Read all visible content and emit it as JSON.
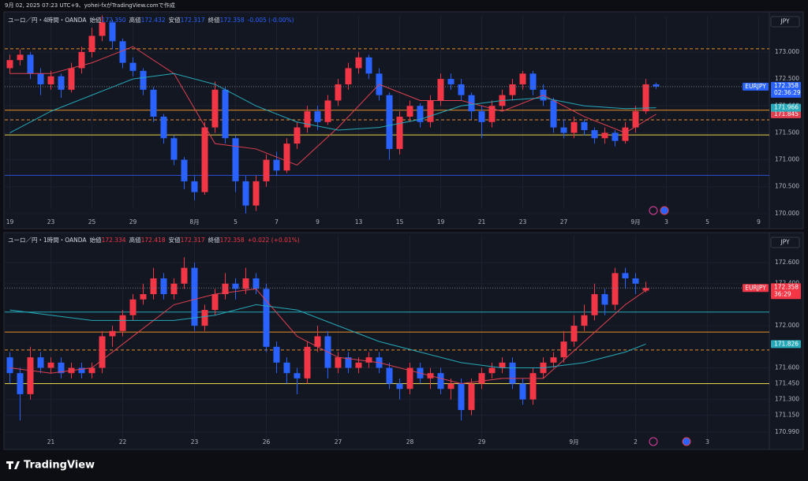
{
  "caption": "9月 02, 2025 07:23 UTC+9、yohei-fxがTradingView.comで作成",
  "footer": "TradingView",
  "chart_data": [
    {
      "type": "candlestick",
      "header": {
        "symbol": "ユーロ／円・4時間・OANDA",
        "fields": [
          {
            "label": "始値",
            "value": "172.350"
          },
          {
            "label": "高値",
            "value": "172.432"
          },
          {
            "label": "安値",
            "value": "172.317"
          },
          {
            "label": "終値",
            "value": "172.358"
          }
        ],
        "change": "-0.005 (-0.00%)",
        "color": "#2962ff"
      },
      "currency": "JPY",
      "symbol": "EURJPY",
      "countdown": "02:36:29",
      "tag_color": "#2962ff",
      "up_color": "#f23645",
      "down_color": "#2962ff",
      "grid": true,
      "ylim": [
        169.94,
        173.673
      ],
      "yticks": [
        {
          "value": 173,
          "label": "173.000"
        },
        {
          "value": 172.5,
          "label": "172.500"
        },
        {
          "value": 172,
          "label": "172.000"
        },
        {
          "value": 171.5,
          "label": "171.500"
        },
        {
          "value": 171,
          "label": "171.000"
        },
        {
          "value": 170.5,
          "label": "170.500"
        },
        {
          "value": 170,
          "label": "170.000"
        }
      ],
      "categories": [
        "19",
        null,
        null,
        null,
        "23",
        null,
        null,
        null,
        "25",
        null,
        null,
        null,
        "29",
        null,
        null,
        null,
        null,
        null,
        "8月",
        null,
        null,
        null,
        "5",
        null,
        null,
        null,
        "7",
        null,
        null,
        null,
        "9",
        null,
        null,
        null,
        "13",
        null,
        null,
        null,
        "15",
        null,
        null,
        null,
        "19",
        null,
        null,
        null,
        "21",
        null,
        null,
        null,
        "23",
        null,
        null,
        null,
        "27",
        null,
        null,
        null,
        null,
        null,
        null,
        "9月",
        null,
        null,
        "3",
        null,
        null,
        null,
        "5",
        null,
        null,
        null,
        null,
        "9"
      ],
      "open": [
        172.7,
        172.85,
        172.95,
        172.6,
        172.4,
        172.55,
        172.3,
        172.7,
        173.0,
        173.3,
        173.55,
        173.2,
        172.8,
        172.65,
        172.3,
        171.8,
        171.4,
        171.0,
        170.6,
        170.4,
        171.6,
        172.3,
        171.4,
        170.6,
        170.15,
        170.6,
        171.0,
        170.8,
        171.3,
        171.6,
        171.9,
        171.7,
        172.1,
        172.4,
        172.7,
        172.9,
        172.6,
        172.2,
        171.2,
        171.8,
        172.0,
        171.7,
        172.1,
        172.5,
        172.4,
        172.2,
        171.9,
        171.7,
        172.0,
        172.2,
        172.4,
        172.6,
        172.3,
        172.1,
        171.6,
        171.5,
        171.7,
        171.55,
        171.4,
        171.5,
        171.35,
        171.6,
        171.9,
        172.4,
        null,
        null,
        null,
        null,
        null,
        null,
        null,
        null,
        null,
        null
      ],
      "high": [
        172.95,
        173.05,
        173.0,
        172.7,
        172.65,
        172.6,
        172.8,
        173.1,
        173.45,
        173.68,
        173.6,
        173.25,
        172.9,
        172.7,
        172.35,
        171.85,
        171.45,
        171.05,
        170.7,
        171.7,
        172.45,
        172.35,
        171.45,
        170.7,
        170.7,
        171.1,
        171.15,
        171.4,
        171.7,
        172.0,
        172.0,
        172.2,
        172.5,
        172.8,
        173.0,
        172.95,
        172.7,
        172.25,
        171.9,
        172.1,
        172.05,
        172.2,
        172.6,
        172.6,
        172.5,
        172.25,
        172.0,
        172.1,
        172.3,
        172.5,
        172.65,
        172.65,
        172.4,
        172.15,
        171.75,
        171.8,
        171.75,
        171.6,
        171.6,
        171.55,
        171.7,
        172.0,
        172.5,
        172.432,
        null,
        null,
        null,
        null,
        null,
        null,
        null,
        null,
        null,
        null
      ],
      "low": [
        172.6,
        172.75,
        172.5,
        172.2,
        172.3,
        172.15,
        172.25,
        172.6,
        172.9,
        173.2,
        173.05,
        172.7,
        172.55,
        172.2,
        171.7,
        171.3,
        170.9,
        170.45,
        170.25,
        170.35,
        171.5,
        171.3,
        170.4,
        170.0,
        170.05,
        170.5,
        170.7,
        170.75,
        171.2,
        171.5,
        171.55,
        171.65,
        172.0,
        172.3,
        172.6,
        172.5,
        172.1,
        171.0,
        171.1,
        171.7,
        171.6,
        171.6,
        172.0,
        172.3,
        172.1,
        171.75,
        171.4,
        171.6,
        171.9,
        172.1,
        172.3,
        172.2,
        172.0,
        171.5,
        171.4,
        171.4,
        171.45,
        171.3,
        171.3,
        171.25,
        171.3,
        171.5,
        171.85,
        172.317,
        null,
        null,
        null,
        null,
        null,
        null,
        null,
        null,
        null,
        null
      ],
      "close": [
        172.85,
        172.95,
        172.6,
        172.4,
        172.55,
        172.3,
        172.7,
        173.0,
        173.3,
        173.55,
        173.2,
        172.8,
        172.65,
        172.3,
        171.8,
        171.4,
        171.0,
        170.6,
        170.4,
        171.6,
        172.3,
        171.4,
        170.6,
        170.15,
        170.6,
        171.0,
        170.8,
        171.3,
        171.6,
        171.9,
        171.7,
        172.1,
        172.4,
        172.7,
        172.9,
        172.6,
        172.2,
        171.2,
        171.8,
        172.0,
        171.7,
        172.1,
        172.5,
        172.4,
        172.2,
        171.9,
        171.7,
        172.0,
        172.2,
        172.4,
        172.6,
        172.3,
        172.1,
        171.6,
        171.5,
        171.7,
        171.55,
        171.4,
        171.5,
        171.35,
        171.6,
        171.9,
        172.4,
        172.358,
        null,
        null,
        null,
        null,
        null,
        null,
        null,
        null,
        null,
        null
      ],
      "series": [
        {
          "color": "#e04050",
          "x": [
            0,
            4,
            8,
            12,
            16,
            20,
            24,
            28,
            32,
            36,
            40,
            44,
            48,
            52,
            56,
            60,
            63
          ],
          "values": [
            172.6,
            172.6,
            172.8,
            173.1,
            172.6,
            171.3,
            171.2,
            170.9,
            171.6,
            172.4,
            172.1,
            172.1,
            171.9,
            172.2,
            171.8,
            171.5,
            171.845
          ]
        },
        {
          "color": "#26a8b8",
          "x": [
            0,
            4,
            8,
            12,
            16,
            20,
            24,
            28,
            32,
            36,
            40,
            44,
            48,
            52,
            56,
            60,
            63
          ],
          "values": [
            171.5,
            171.9,
            172.2,
            172.5,
            172.6,
            172.4,
            172.0,
            171.7,
            171.55,
            171.6,
            171.75,
            172.0,
            172.1,
            172.15,
            172.0,
            171.95,
            171.966
          ]
        }
      ],
      "levels": [
        {
          "value": 173.06,
          "color": "#e8902a",
          "style": "dashed"
        },
        {
          "value": 171.92,
          "color": "#e8902a",
          "style": "solid"
        },
        {
          "value": 171.74,
          "color": "#e8902a",
          "style": "dashed"
        },
        {
          "value": 171.46,
          "color": "#e8d44a",
          "style": "solid"
        },
        {
          "value": 170.71,
          "color": "#2c4fd8",
          "style": "solid"
        }
      ]
    },
    {
      "type": "candlestick",
      "header": {
        "symbol": "ユーロ／円・1時間・OANDA",
        "fields": [
          {
            "label": "始値",
            "value": "172.334"
          },
          {
            "label": "高値",
            "value": "172.418"
          },
          {
            "label": "安値",
            "value": "172.317"
          },
          {
            "label": "終値",
            "value": "172.358"
          }
        ],
        "change": "+0.022 (+0.01%)",
        "color": "#f23645"
      },
      "currency": "JPY",
      "symbol": "EURJPY",
      "countdown": "36:29",
      "tag_color": "#f23645",
      "up_color": "#f23645",
      "down_color": "#2962ff",
      "grid": true,
      "ylim": [
        170.84,
        172.862
      ],
      "yticks": [
        {
          "value": 172.6,
          "label": "172.600"
        },
        {
          "value": 172.4,
          "label": "172.400"
        },
        {
          "value": 172,
          "label": "172.000"
        },
        {
          "value": 171.6,
          "label": "171.600"
        },
        {
          "value": 171.45,
          "label": "171.450"
        },
        {
          "value": 171.3,
          "label": "171.300"
        },
        {
          "value": 171.15,
          "label": "171.150"
        },
        {
          "value": 170.99,
          "label": "170.990"
        }
      ],
      "categories": [
        null,
        null,
        null,
        null,
        "21",
        null,
        null,
        null,
        null,
        null,
        null,
        "22",
        null,
        null,
        null,
        null,
        null,
        null,
        "23",
        null,
        null,
        null,
        null,
        null,
        null,
        "26",
        null,
        null,
        null,
        null,
        null,
        null,
        "27",
        null,
        null,
        null,
        null,
        null,
        null,
        "28",
        null,
        null,
        null,
        null,
        null,
        null,
        "29",
        null,
        null,
        null,
        null,
        null,
        null,
        null,
        null,
        "9月",
        null,
        null,
        null,
        null,
        null,
        "2",
        null,
        null,
        null,
        null,
        null,
        null,
        "3",
        null,
        null,
        null,
        null,
        null
      ],
      "open": [
        171.7,
        171.55,
        171.35,
        171.7,
        171.6,
        171.65,
        171.55,
        171.6,
        171.55,
        171.6,
        171.9,
        171.95,
        172.1,
        172.25,
        172.3,
        172.45,
        172.3,
        172.4,
        172.55,
        172.0,
        172.15,
        172.3,
        172.4,
        172.35,
        172.45,
        172.35,
        171.8,
        171.65,
        171.55,
        171.5,
        171.8,
        171.9,
        171.6,
        171.7,
        171.6,
        171.65,
        171.7,
        171.6,
        171.45,
        171.4,
        171.6,
        171.5,
        171.55,
        171.4,
        171.45,
        171.2,
        171.45,
        171.55,
        171.6,
        171.65,
        171.45,
        171.3,
        171.55,
        171.65,
        171.7,
        171.85,
        172.0,
        172.1,
        172.3,
        172.2,
        172.5,
        172.45,
        172.334,
        null,
        null,
        null,
        null,
        null,
        null,
        null,
        null,
        null,
        null,
        null
      ],
      "high": [
        171.75,
        171.6,
        171.8,
        171.75,
        171.7,
        171.7,
        171.65,
        171.65,
        171.65,
        171.95,
        172.0,
        172.15,
        172.3,
        172.4,
        172.55,
        172.5,
        172.45,
        172.65,
        172.6,
        172.2,
        172.35,
        172.5,
        172.45,
        172.55,
        172.5,
        172.4,
        171.85,
        171.7,
        171.6,
        171.85,
        172.0,
        171.95,
        171.75,
        171.75,
        171.7,
        171.75,
        171.75,
        171.65,
        171.5,
        171.65,
        171.65,
        171.6,
        171.6,
        171.5,
        171.5,
        171.5,
        171.6,
        171.65,
        171.7,
        171.7,
        171.5,
        171.6,
        171.7,
        171.75,
        171.95,
        172.1,
        172.2,
        172.4,
        172.35,
        172.55,
        172.55,
        172.5,
        172.418,
        null,
        null,
        null,
        null,
        null,
        null,
        null,
        null,
        null,
        null,
        null
      ],
      "low": [
        171.45,
        171.1,
        171.3,
        171.55,
        171.55,
        171.5,
        171.5,
        171.5,
        171.5,
        171.55,
        171.8,
        171.9,
        172.05,
        172.2,
        172.25,
        172.25,
        172.25,
        172.35,
        171.95,
        171.95,
        172.1,
        172.25,
        172.25,
        172.3,
        172.3,
        171.75,
        171.55,
        171.45,
        171.35,
        171.45,
        171.75,
        171.5,
        171.55,
        171.55,
        171.55,
        171.6,
        171.55,
        171.4,
        171.3,
        171.35,
        171.45,
        171.4,
        171.35,
        171.3,
        171.1,
        171.15,
        171.4,
        171.5,
        171.55,
        171.4,
        171.25,
        171.25,
        171.5,
        171.6,
        171.65,
        171.8,
        171.95,
        172.05,
        172.1,
        172.15,
        172.35,
        172.3,
        172.317,
        null,
        null,
        null,
        null,
        null,
        null,
        null,
        null,
        null,
        null,
        null
      ],
      "close": [
        171.55,
        171.35,
        171.7,
        171.6,
        171.65,
        171.55,
        171.6,
        171.55,
        171.6,
        171.9,
        171.95,
        172.1,
        172.25,
        172.3,
        172.45,
        172.3,
        172.4,
        172.55,
        172.0,
        172.15,
        172.3,
        172.4,
        172.35,
        172.45,
        172.35,
        171.8,
        171.65,
        171.55,
        171.5,
        171.8,
        171.9,
        171.6,
        171.7,
        171.6,
        171.65,
        171.7,
        171.6,
        171.45,
        171.4,
        171.6,
        171.5,
        171.55,
        171.4,
        171.45,
        171.2,
        171.45,
        171.55,
        171.6,
        171.65,
        171.45,
        171.3,
        171.55,
        171.65,
        171.7,
        171.85,
        172.0,
        172.1,
        172.3,
        172.2,
        172.5,
        172.45,
        172.4,
        172.358,
        null,
        null,
        null,
        null,
        null,
        null,
        null,
        null,
        null,
        null,
        null
      ],
      "series": [
        {
          "color": "#e04050",
          "x": [
            0,
            4,
            8,
            12,
            16,
            20,
            24,
            28,
            32,
            36,
            40,
            44,
            48,
            52,
            56,
            60,
            62
          ],
          "values": [
            171.6,
            171.55,
            171.6,
            171.9,
            172.2,
            172.3,
            172.35,
            171.9,
            171.7,
            171.65,
            171.55,
            171.45,
            171.5,
            171.5,
            171.85,
            172.2,
            172.336
          ]
        },
        {
          "color": "#26a8b8",
          "x": [
            0,
            4,
            8,
            12,
            16,
            20,
            24,
            28,
            32,
            36,
            40,
            44,
            48,
            52,
            56,
            60,
            62
          ],
          "values": [
            172.15,
            172.1,
            172.05,
            172.05,
            172.05,
            172.1,
            172.2,
            172.15,
            172.0,
            171.85,
            171.75,
            171.65,
            171.6,
            171.6,
            171.65,
            171.75,
            171.826
          ]
        }
      ],
      "levels": [
        {
          "value": 172.13,
          "color": "#26a8b8",
          "style": "solid"
        },
        {
          "value": 171.94,
          "color": "#e8902a",
          "style": "solid"
        },
        {
          "value": 171.77,
          "color": "#e8902a",
          "style": "dashed"
        },
        {
          "value": 171.45,
          "color": "#e8d44a",
          "style": "solid"
        }
      ]
    }
  ]
}
